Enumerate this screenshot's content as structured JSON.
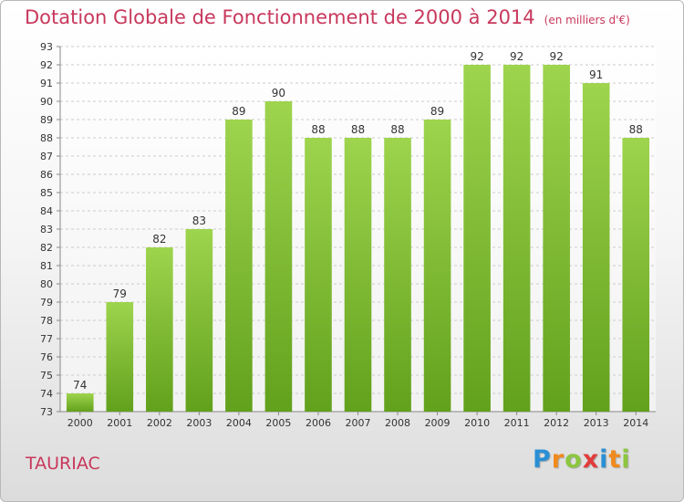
{
  "chart_data": {
    "type": "bar",
    "title": "Dotation Globale de Fonctionnement de 2000 à 2014",
    "subtitle": "(en milliers d'€)",
    "xlabel": "",
    "ylabel": "",
    "categories": [
      "2000",
      "2001",
      "2002",
      "2003",
      "2004",
      "2005",
      "2006",
      "2007",
      "2008",
      "2009",
      "2010",
      "2011",
      "2012",
      "2013",
      "2014"
    ],
    "values": [
      74,
      79,
      82,
      83,
      89,
      90,
      88,
      88,
      88,
      89,
      92,
      92,
      92,
      91,
      88
    ],
    "ylim": [
      73,
      93
    ],
    "yticks": [
      73,
      74,
      75,
      76,
      77,
      78,
      79,
      80,
      81,
      82,
      83,
      84,
      85,
      86,
      87,
      88,
      89,
      90,
      91,
      92,
      93
    ],
    "grid": true,
    "legend": "none",
    "bar_color": "#7dc231"
  },
  "commune": "TAURIAC",
  "logo": {
    "text": "Proxiti",
    "letters": [
      {
        "ch": "P",
        "color": "#2a8fd4"
      },
      {
        "ch": "r",
        "color": "#f08a1c"
      },
      {
        "ch": "o",
        "color": "#8cc63f"
      },
      {
        "ch": "x",
        "color": "#e23b3b"
      },
      {
        "ch": "i",
        "color": "#2a8fd4"
      },
      {
        "ch": "t",
        "color": "#f08a1c"
      },
      {
        "ch": "i",
        "color": "#8cc63f"
      }
    ]
  }
}
